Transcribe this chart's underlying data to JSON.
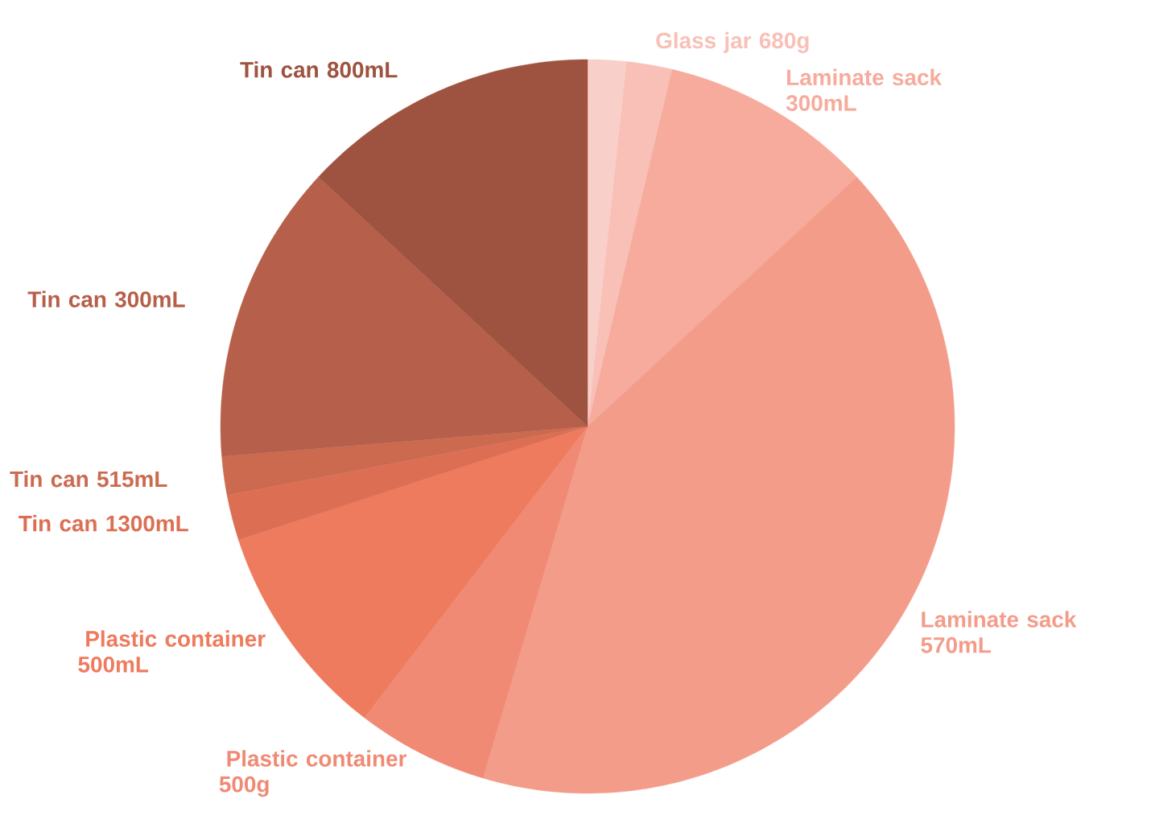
{
  "chart_data": {
    "type": "pie",
    "categories": [
      null,
      "Glass jar 680g",
      "Laminate sack 300mL",
      "Laminate sack 570mL",
      "Plastic container 500g",
      "Plastic container 500mL",
      "Tin can 1300mL",
      "Tin can 515mL",
      "Tin can 300mL",
      "Tin can 800mL"
    ],
    "values": [
      1.7,
      2.0,
      9.4,
      41.5,
      5.8,
      9.6,
      2.0,
      1.7,
      13.2,
      13.1
    ],
    "colors": [
      "#f9d0c9",
      "#f8c0b6",
      "#f6ab9c",
      "#f49c8a",
      "#f08a74",
      "#ee7b5e",
      "#dc6f53",
      "#cc6a50",
      "#b65f4a",
      "#9e5340"
    ]
  }
}
